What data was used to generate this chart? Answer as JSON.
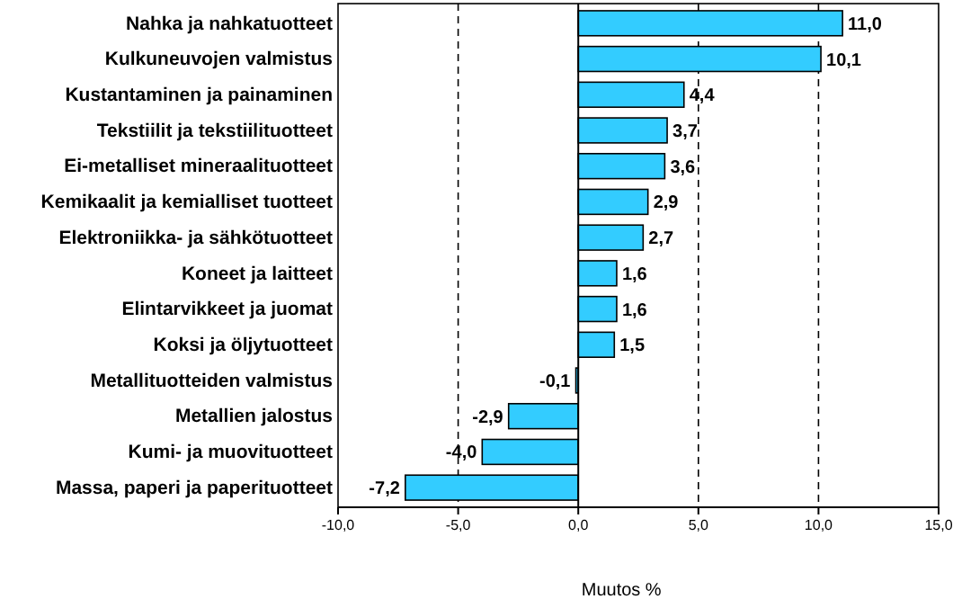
{
  "chart_data": {
    "type": "bar",
    "orientation": "horizontal",
    "xlabel": "Muutos %",
    "categories": [
      "Nahka ja nahkatuotteet",
      "Kulkuneuvojen valmistus",
      "Kustantaminen ja painaminen",
      "Tekstiilit ja tekstiilituotteet",
      "Ei-metalliset mineraalituotteet",
      "Kemikaalit ja kemialliset tuotteet",
      "Elektroniikka- ja sähkötuotteet",
      "Koneet ja laitteet",
      "Elintarvikkeet ja juomat",
      "Koksi ja öljytuotteet",
      "Metallituotteiden valmistus",
      "Metallien jalostus",
      "Kumi- ja muovituotteet",
      "Massa, paperi ja paperituotteet"
    ],
    "values": [
      11.0,
      10.1,
      4.4,
      3.7,
      3.6,
      2.9,
      2.7,
      1.6,
      1.6,
      1.5,
      -0.1,
      -2.9,
      -4.0,
      -7.2
    ],
    "value_labels": [
      "11,0",
      "10,1",
      "4,4",
      "3,7",
      "3,6",
      "2,9",
      "2,7",
      "1,6",
      "1,6",
      "1,5",
      "-0,1",
      "-2,9",
      "-4,0",
      "-7,2"
    ],
    "color": "#33ccff",
    "xlim": [
      -10,
      15
    ],
    "xticks": [
      {
        "value": -10,
        "label": "-10,0"
      },
      {
        "value": -5,
        "label": "-5,0"
      },
      {
        "value": 0,
        "label": "0,0"
      },
      {
        "value": 5,
        "label": "5,0"
      },
      {
        "value": 10,
        "label": "10,0"
      },
      {
        "value": 15,
        "label": "15,0"
      }
    ],
    "grid": "x"
  }
}
